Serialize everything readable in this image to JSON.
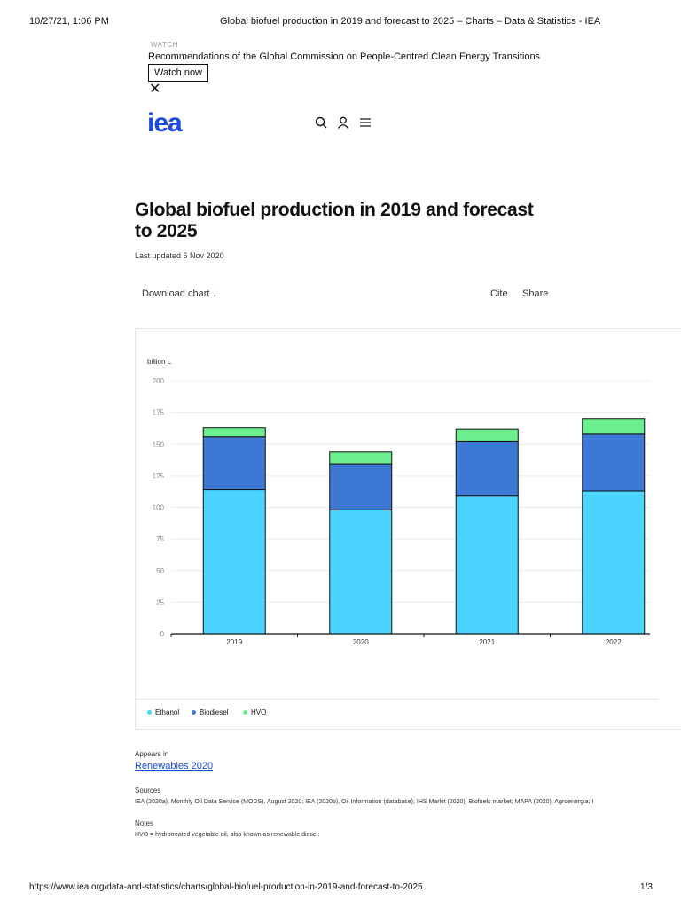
{
  "print_header": {
    "datetime": "10/27/21, 1:06 PM",
    "title": "Global biofuel production in 2019 and forecast to 2025 – Charts – Data & Statistics - IEA"
  },
  "banner": {
    "label": "WATCH",
    "text": "Recommendations of the Global Commission on People-Centred Clean Energy Transitions",
    "button": "Watch now",
    "close": "✕"
  },
  "nav": {
    "logo": "iea",
    "icons": [
      "search-icon",
      "user-icon",
      "menu-icon"
    ]
  },
  "page": {
    "title": "Global biofuel production in 2019 and forecast to 2025",
    "updated": "Last updated 6 Nov 2020",
    "download": "Download chart ↓",
    "cite": "Cite",
    "share": "Share"
  },
  "chart_data": {
    "type": "bar",
    "stacked": true,
    "ylabel": "billion L",
    "ylim": [
      0,
      200
    ],
    "yticks": [
      0,
      25,
      50,
      75,
      100,
      125,
      150,
      175,
      200
    ],
    "grid": true,
    "legend_position": "bottom-left",
    "categories": [
      "2019",
      "2020",
      "2021",
      "2022"
    ],
    "series": [
      {
        "name": "Ethanol",
        "color": "#4ad4ff",
        "values": [
          114,
          98,
          109,
          113
        ]
      },
      {
        "name": "Biodiesel",
        "color": "#3d79d4",
        "values": [
          42,
          36,
          43,
          45
        ]
      },
      {
        "name": "HVO",
        "color": "#6cf08f",
        "values": [
          7,
          10,
          10,
          12
        ]
      }
    ]
  },
  "appears": {
    "label": "Appears in",
    "link": "Renewables 2020"
  },
  "sources": {
    "label": "Sources",
    "text": "IEA (2020a), Monthly Oil Data Service (MODS), August 2020; IEA (2020b), Oil Information (database); IHS Markit (2020), Biofuels market; MAPA (2020), Agroenergia; I"
  },
  "notes": {
    "label": "Notes",
    "text": "HVO = hydrotreated vegetable oil, also known as renewable diesel."
  },
  "footer": {
    "url": "https://www.iea.org/data-and-statistics/charts/global-biofuel-production-in-2019-and-forecast-to-2025",
    "page": "1/3"
  }
}
